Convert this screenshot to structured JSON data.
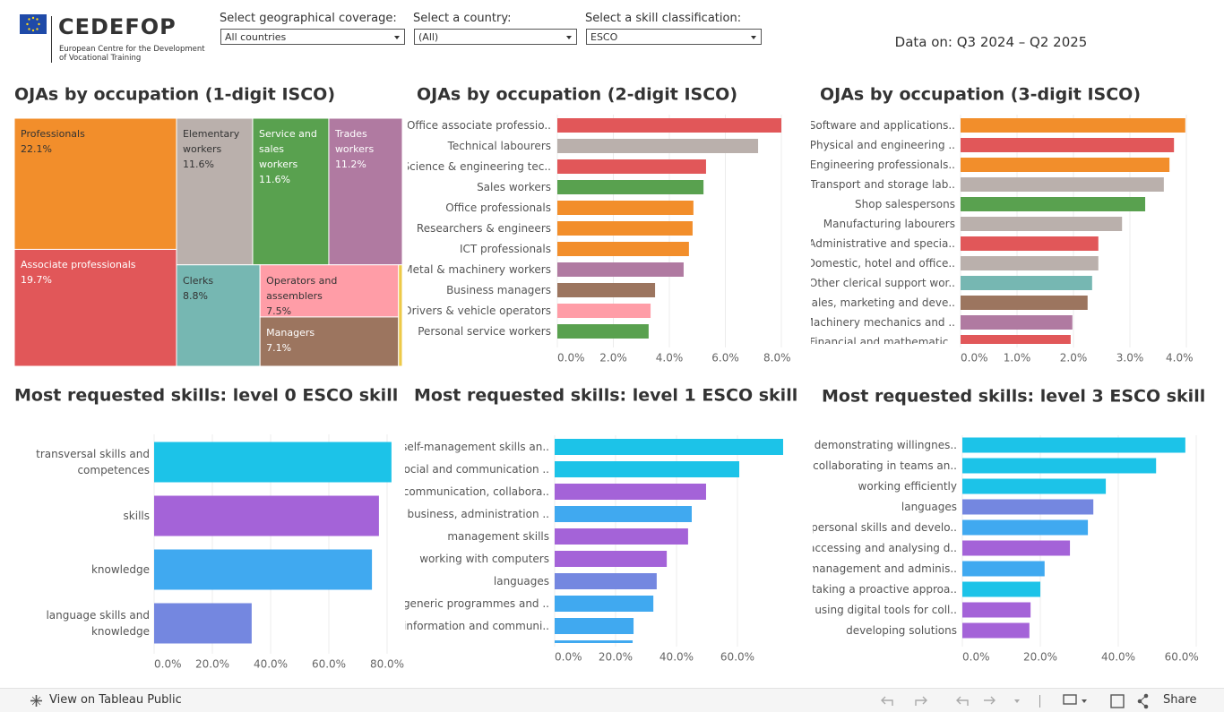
{
  "header": {
    "logo": "CEDEFOP",
    "org_name": [
      "European Centre for the Development",
      "of Vocational Training"
    ]
  },
  "filters": [
    {
      "label": "Select geographical coverage:",
      "value": "All countries"
    },
    {
      "label": "Select a country:",
      "value": "(All)"
    },
    {
      "label": "Select a skill classification:",
      "value": "ESCO"
    }
  ],
  "data_period": "Data on: Q3 2024 – Q2 2025",
  "footer": {
    "view_link": "View on Tableau Public",
    "share": "Share"
  },
  "chart_data": [
    {
      "type": "treemap",
      "title": "OJAs by occupation (1-digit ISCO)",
      "categories": [
        "Professionals",
        "Associate professionals",
        "Elementary workers",
        "Service and sales workers",
        "Trades workers",
        "Clerks",
        "Operators and assemblers",
        "Managers",
        null
      ],
      "values": [
        22.1,
        19.7,
        11.6,
        11.6,
        11.2,
        8.8,
        7.5,
        7.1,
        0.4
      ],
      "value_labels": [
        "22.1%",
        "19.7%",
        "11.6%",
        "11.6%",
        "11.2%",
        "8.8%",
        "7.5%",
        "7.1%",
        null
      ],
      "colors": [
        "#f28e2b",
        "#e15759",
        "#bab0ac",
        "#59a14f",
        "#b07aa1",
        "#76b7b2",
        "#ff9da7",
        "#9c755f",
        "#edc948"
      ]
    },
    {
      "type": "bar",
      "orientation": "horizontal",
      "title": "OJAs by occupation (2-digit ISCO)",
      "categories": [
        "Office associate professio..",
        "Technical labourers",
        "Science & engineering tec..",
        "Sales workers",
        "Office professionals",
        "Researchers & engineers",
        "ICT professionals",
        "Metal & machinery workers",
        "Business managers",
        "Drivers & vehicle operators",
        "Personal service workers"
      ],
      "values": [
        8.0,
        7.17,
        5.31,
        5.22,
        4.86,
        4.83,
        4.7,
        4.51,
        3.49,
        3.33,
        3.26
      ],
      "colors": [
        "#e15759",
        "#bab0ac",
        "#e15759",
        "#59a14f",
        "#f28e2b",
        "#f28e2b",
        "#f28e2b",
        "#b07aa1",
        "#9c755f",
        "#ff9da7",
        "#59a14f"
      ],
      "xlim": [
        0,
        8.4
      ],
      "xticks": [
        {
          "value": 0,
          "label": "0.0%"
        },
        {
          "value": 2,
          "label": "2.0%"
        },
        {
          "value": 4,
          "label": "4.0%"
        },
        {
          "value": 6,
          "label": "6.0%"
        },
        {
          "value": 8,
          "label": "8.0%"
        }
      ],
      "grid": true
    },
    {
      "type": "bar",
      "orientation": "horizontal",
      "title": "OJAs by occupation (3-digit ISCO)",
      "categories": [
        "Software and applications..",
        "Physical and engineering ..",
        "Engineering professionals..",
        "Transport and storage lab..",
        "Shop salespersons",
        "Manufacturing labourers",
        "Administrative and specia..",
        "Domestic, hotel and office..",
        "Other clerical support wor..",
        "Sales, marketing and deve..",
        "Machinery mechanics and ..",
        "Financial and mathematic.."
      ],
      "values": [
        3.98,
        3.78,
        3.7,
        3.6,
        3.27,
        2.86,
        2.44,
        2.44,
        2.33,
        2.25,
        1.98,
        1.95
      ],
      "colors": [
        "#f28e2b",
        "#e15759",
        "#f28e2b",
        "#bab0ac",
        "#59a14f",
        "#bab0ac",
        "#e15759",
        "#bab0ac",
        "#76b7b2",
        "#9c755f",
        "#b07aa1",
        "#e15759"
      ],
      "xlim": [
        0,
        4.15
      ],
      "xticks": [
        {
          "value": 0,
          "label": "0.0%"
        },
        {
          "value": 1,
          "label": "1.0%"
        },
        {
          "value": 2,
          "label": "2.0%"
        },
        {
          "value": 3,
          "label": "3.0%"
        },
        {
          "value": 4,
          "label": "4.0%"
        }
      ],
      "grid": true
    },
    {
      "type": "bar",
      "orientation": "horizontal",
      "title": "Most requested skills: level 0 ESCO skill",
      "categories": [
        "transversal skills and competences",
        "skills",
        "knowledge",
        "language skills and knowledge"
      ],
      "values": [
        81.5,
        77.2,
        74.8,
        33.5
      ],
      "colors": [
        "#1cc3e8",
        "#a463d8",
        "#40a9f0",
        "#7487e0"
      ],
      "xlim": [
        0,
        85.6
      ],
      "xticks": [
        {
          "value": 0,
          "label": "0.0%"
        },
        {
          "value": 20,
          "label": "20.0%"
        },
        {
          "value": 40,
          "label": "40.0%"
        },
        {
          "value": 60,
          "label": "60.0%"
        },
        {
          "value": 80,
          "label": "80.0%"
        }
      ],
      "grid": true
    },
    {
      "type": "bar",
      "orientation": "horizontal",
      "title": "Most requested skills: level 1 ESCO skill",
      "categories": [
        "self-management skills an..",
        "social and communication ..",
        "communication, collabora..",
        "business, administration ..",
        "management skills",
        "working with computers",
        "languages",
        "generic programmes and ..",
        "information and communi..",
        null
      ],
      "values": [
        75.0,
        60.6,
        49.7,
        45.0,
        43.8,
        36.8,
        33.5,
        32.4,
        25.9,
        25.6
      ],
      "colors": [
        "#1cc3e8",
        "#1cc3e8",
        "#a463d8",
        "#40a9f0",
        "#a463d8",
        "#a463d8",
        "#7487e0",
        "#40a9f0",
        "#40a9f0",
        "#40a9f0"
      ],
      "xlim": [
        0,
        78.8
      ],
      "xticks": [
        {
          "value": 0,
          "label": "0.0%"
        },
        {
          "value": 20,
          "label": "20.0%"
        },
        {
          "value": 40,
          "label": "40.0%"
        },
        {
          "value": 60,
          "label": "60.0%"
        }
      ],
      "grid": true
    },
    {
      "type": "bar",
      "orientation": "horizontal",
      "title": "Most requested skills: level 3 ESCO skill",
      "categories": [
        "demonstrating willingnes..",
        "collaborating in teams an..",
        "working efficiently",
        "languages",
        "personal skills and develo..",
        "accessing and analysing d..",
        "management and adminis..",
        "taking a proactive approa..",
        "using digital tools for coll..",
        "developing solutions"
      ],
      "values": [
        57.2,
        49.7,
        36.8,
        33.6,
        32.2,
        27.6,
        21.1,
        20.0,
        17.5,
        17.2
      ],
      "colors": [
        "#1cc3e8",
        "#1cc3e8",
        "#1cc3e8",
        "#7487e0",
        "#40a9f0",
        "#a463d8",
        "#40a9f0",
        "#1cc3e8",
        "#a463d8",
        "#a463d8"
      ],
      "xlim": [
        0,
        61.1
      ],
      "xticks": [
        {
          "value": 0,
          "label": "0.0%"
        },
        {
          "value": 20,
          "label": "20.0%"
        },
        {
          "value": 40,
          "label": "40.0%"
        },
        {
          "value": 60,
          "label": "60.0%"
        }
      ],
      "grid": true
    }
  ]
}
